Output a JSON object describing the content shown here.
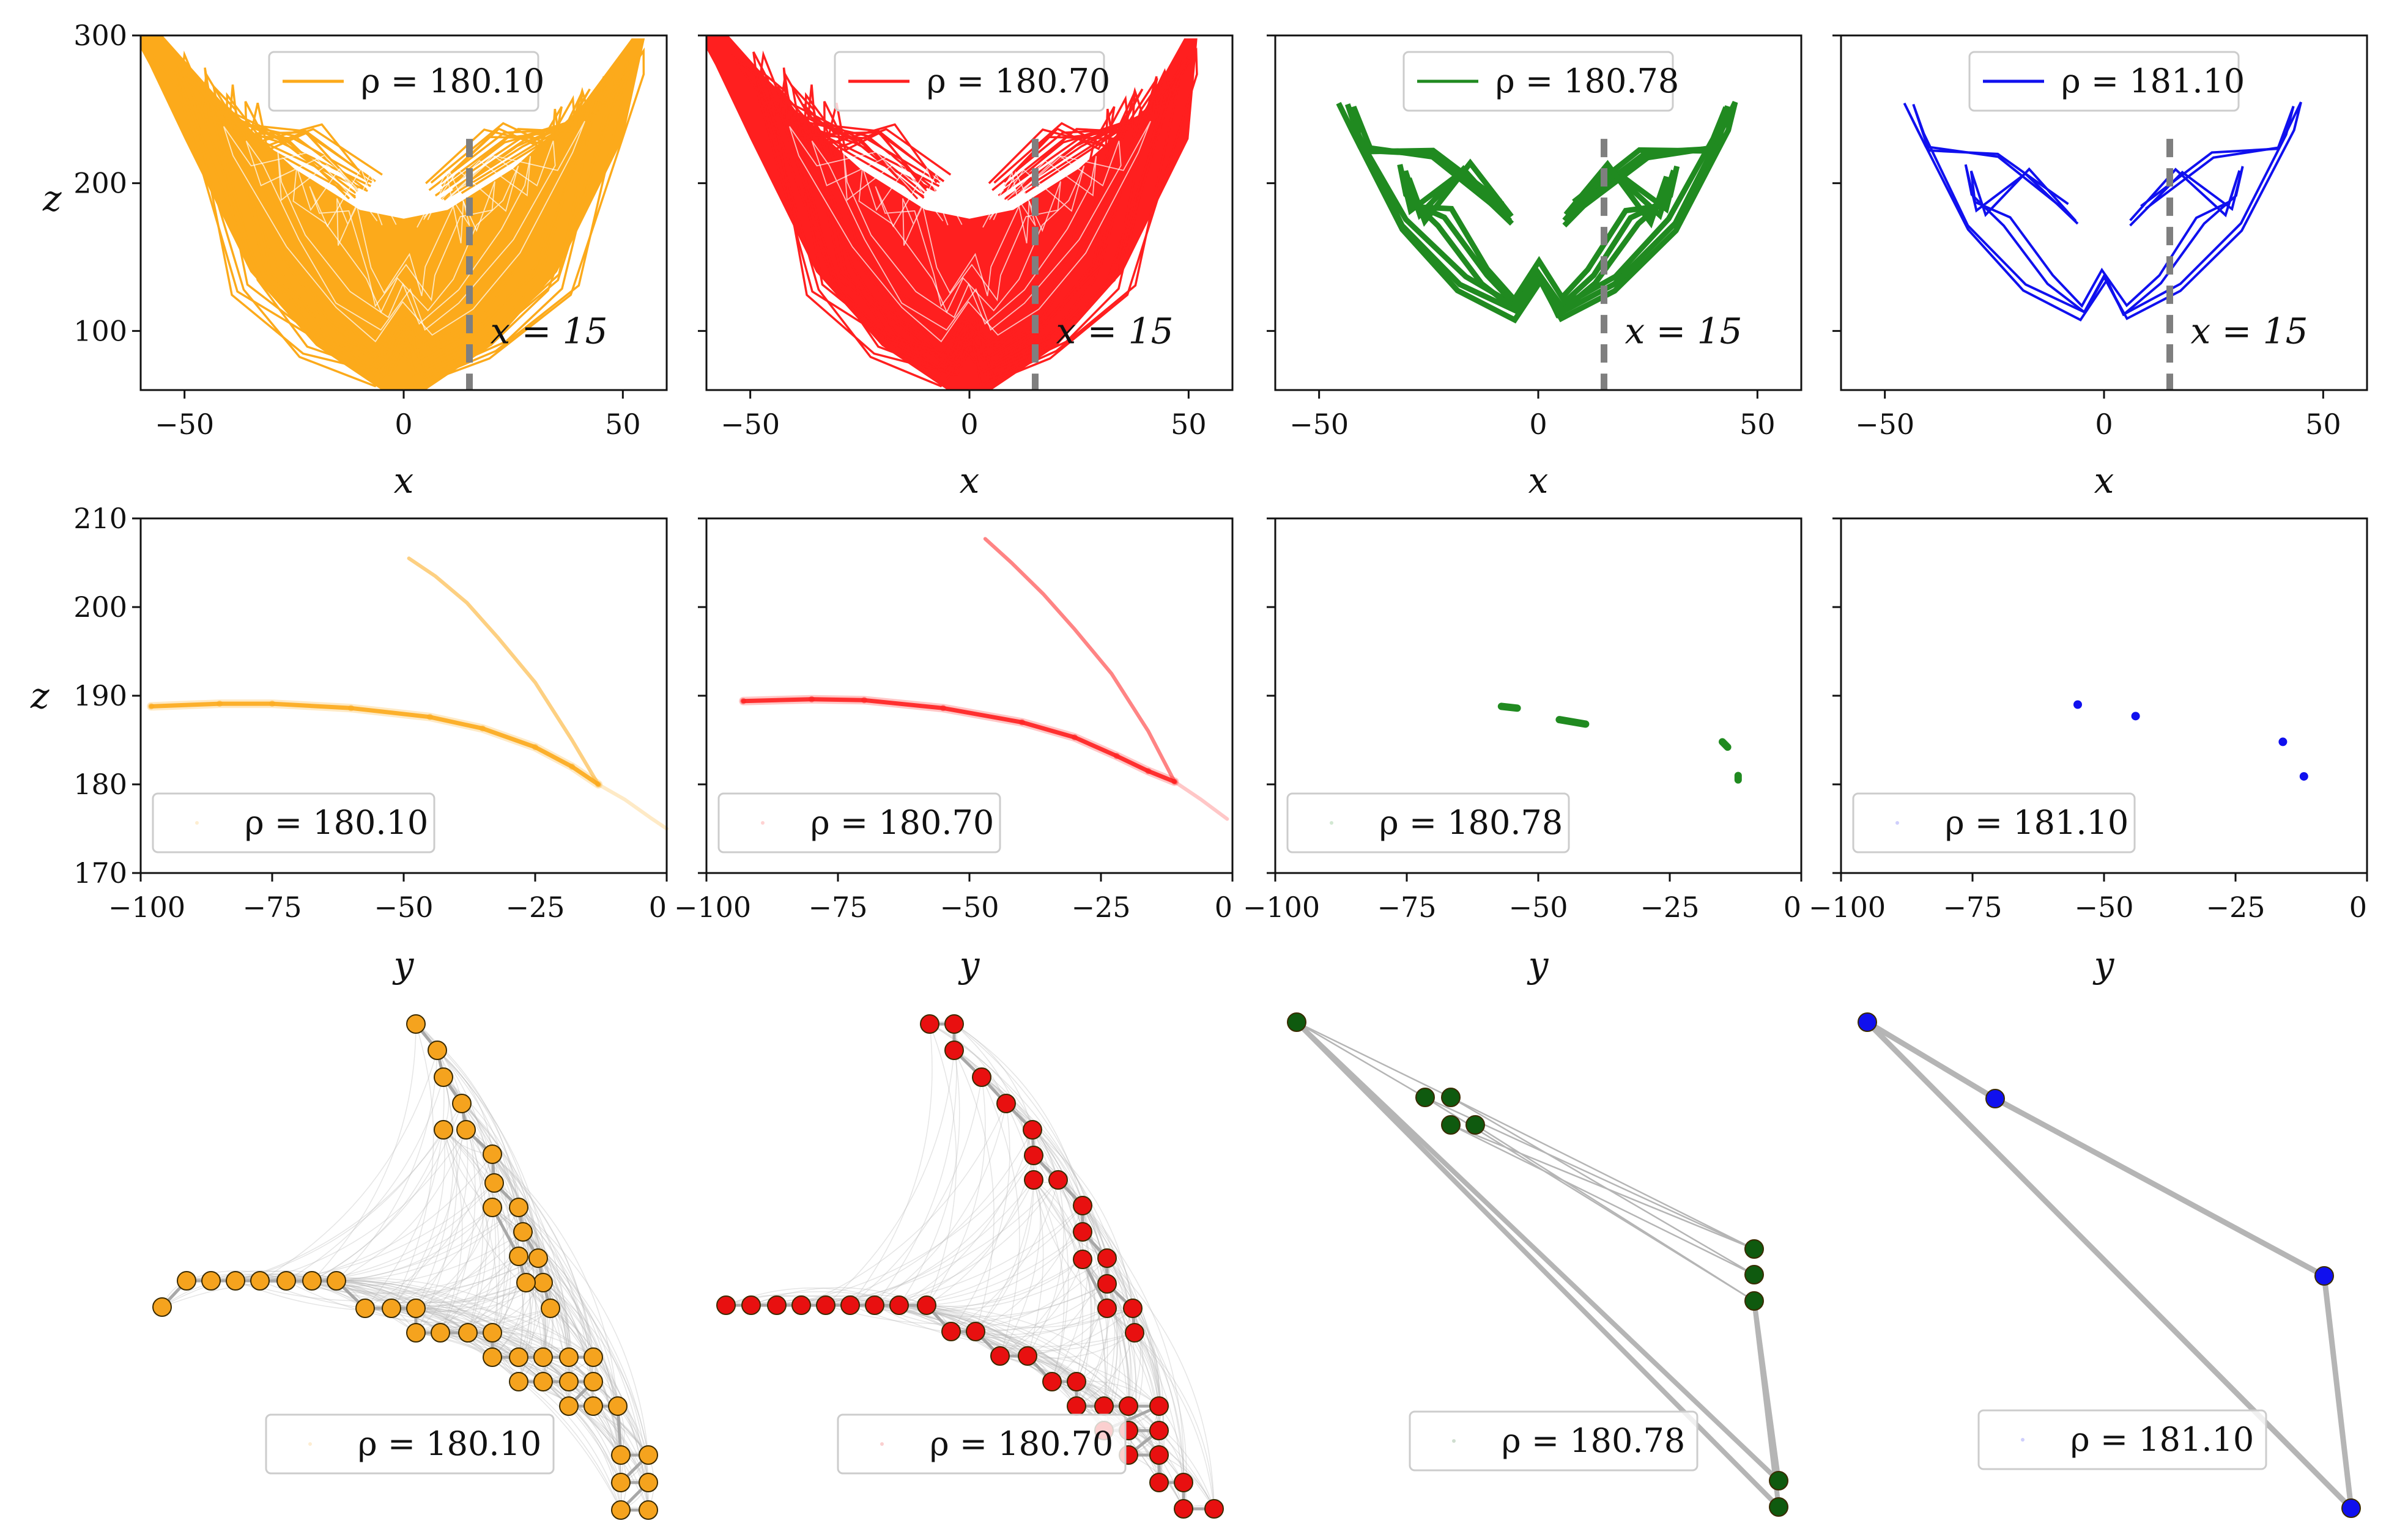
{
  "chart_data": [
    {
      "panel": "row1-col1",
      "type": "line",
      "xlabel": "x",
      "ylabel": "z",
      "xlim": [
        -60,
        60
      ],
      "ylim": [
        60,
        300
      ],
      "xticks": [
        "−50",
        "0",
        "50"
      ],
      "yticks": [
        "100",
        "200",
        "300"
      ],
      "series": [
        {
          "name": "ρ = 180.10",
          "color": "#fcaa1b",
          "style": "chaotic"
        }
      ],
      "vline": {
        "x": 15,
        "label": "x = 15",
        "color": "#7f7f7f"
      }
    },
    {
      "panel": "row1-col2",
      "type": "line",
      "xlabel": "x",
      "ylabel": "",
      "xlim": [
        -60,
        60
      ],
      "ylim": [
        60,
        300
      ],
      "xticks": [
        "−50",
        "0",
        "50"
      ],
      "yticks": [],
      "series": [
        {
          "name": "ρ = 180.70",
          "color": "#ff1f1f",
          "style": "chaotic"
        }
      ],
      "vline": {
        "x": 15,
        "label": "x = 15",
        "color": "#7f7f7f"
      }
    },
    {
      "panel": "row1-col3",
      "type": "line",
      "xlabel": "x",
      "ylabel": "",
      "xlim": [
        -60,
        60
      ],
      "ylim": [
        60,
        300
      ],
      "xticks": [
        "−50",
        "0",
        "50"
      ],
      "yticks": [],
      "series": [
        {
          "name": "ρ = 180.78",
          "color": "#208a20",
          "style": "periodic"
        }
      ],
      "vline": {
        "x": 15,
        "label": "x = 15",
        "color": "#7f7f7f"
      }
    },
    {
      "panel": "row1-col4",
      "type": "line",
      "xlabel": "x",
      "ylabel": "",
      "xlim": [
        -60,
        60
      ],
      "ylim": [
        60,
        300
      ],
      "xticks": [
        "−50",
        "0",
        "50"
      ],
      "yticks": [],
      "series": [
        {
          "name": "ρ = 181.10",
          "color": "#1010ee",
          "style": "periodic"
        }
      ],
      "vline": {
        "x": 15,
        "label": "x = 15",
        "color": "#7f7f7f"
      }
    },
    {
      "panel": "row2-col1",
      "type": "scatter",
      "xlabel": "y",
      "ylabel": "z",
      "xlim": [
        -100,
        0
      ],
      "ylim": [
        170,
        210
      ],
      "xticks": [
        "−100",
        "−75",
        "−50",
        "−25",
        "0"
      ],
      "yticks": [
        "170",
        "180",
        "190",
        "200",
        "210"
      ],
      "series": [
        {
          "name": "ρ = 180.10",
          "color": "#fcaa1b",
          "curve": [
            [
              -98,
              188.8
            ],
            [
              -85,
              189.1
            ],
            [
              -75,
              189.1
            ],
            [
              -60,
              188.6
            ],
            [
              -45,
              187.6
            ],
            [
              -35,
              186.3
            ],
            [
              -25,
              184.2
            ],
            [
              -18,
              182
            ],
            [
              -13,
              180
            ]
          ],
          "branch": [
            [
              -13,
              180
            ],
            [
              -18,
              185
            ],
            [
              -25,
              191.5
            ],
            [
              -32,
              196.5
            ],
            [
              -38,
              200.5
            ],
            [
              -44,
              203.5
            ],
            [
              -49,
              205.5
            ]
          ],
          "tail": [
            [
              -13,
              180
            ],
            [
              -8,
              178.3
            ],
            [
              -3,
              176.2
            ],
            [
              0,
              175
            ]
          ]
        }
      ]
    },
    {
      "panel": "row2-col2",
      "type": "scatter",
      "xlabel": "y",
      "ylabel": "",
      "xlim": [
        -100,
        0
      ],
      "ylim": [
        170,
        210
      ],
      "xticks": [
        "−100",
        "−75",
        "−50",
        "−25",
        "0"
      ],
      "yticks": [],
      "series": [
        {
          "name": "ρ = 180.70",
          "color": "#ff1f1f",
          "curve": [
            [
              -93,
              189.4
            ],
            [
              -80,
              189.6
            ],
            [
              -70,
              189.5
            ],
            [
              -55,
              188.6
            ],
            [
              -40,
              187
            ],
            [
              -30,
              185.3
            ],
            [
              -22,
              183.2
            ],
            [
              -16,
              181.5
            ],
            [
              -11,
              180.3
            ]
          ],
          "branch": [
            [
              -11,
              180.3
            ],
            [
              -16,
              186
            ],
            [
              -23,
              192.5
            ],
            [
              -30,
              197.5
            ],
            [
              -36,
              201.5
            ],
            [
              -42,
              205
            ],
            [
              -47,
              207.7
            ]
          ],
          "tail": [
            [
              -11,
              180.3
            ],
            [
              -6,
              178.3
            ],
            [
              -1,
              176.1
            ]
          ]
        }
      ]
    },
    {
      "panel": "row2-col3",
      "type": "scatter",
      "xlabel": "y",
      "ylabel": "",
      "xlim": [
        -100,
        0
      ],
      "ylim": [
        170,
        210
      ],
      "xticks": [
        "−100",
        "−75",
        "−50",
        "−25",
        "0"
      ],
      "yticks": [],
      "series": [
        {
          "name": "ρ = 180.78",
          "color": "#208a20",
          "segments": [
            [
              [
                -57,
                188.8
              ],
              [
                -54,
                188.6
              ]
            ],
            [
              [
                -46,
                187.3
              ],
              [
                -41,
                186.8
              ]
            ],
            [
              [
                -15,
                184.8
              ],
              [
                -14,
                184.2
              ]
            ],
            [
              [
                -12,
                181
              ],
              [
                -12,
                180.5
              ]
            ]
          ]
        }
      ]
    },
    {
      "panel": "row2-col4",
      "type": "scatter",
      "xlabel": "y",
      "ylabel": "",
      "xlim": [
        -100,
        0
      ],
      "ylim": [
        170,
        210
      ],
      "xticks": [
        "−100",
        "−75",
        "−50",
        "−25",
        "0"
      ],
      "yticks": [],
      "series": [
        {
          "name": "ρ = 181.10",
          "color": "#1010ee",
          "points": [
            [
              -55,
              189
            ],
            [
              -44,
              187.7
            ],
            [
              -16,
              184.8
            ],
            [
              -12,
              180.9
            ]
          ]
        }
      ]
    },
    {
      "panel": "row3-col1",
      "type": "network",
      "series": [
        {
          "name": "ρ = 180.10",
          "color": "#f5a31e"
        }
      ]
    },
    {
      "panel": "row3-col2",
      "type": "network",
      "series": [
        {
          "name": "ρ = 180.70",
          "color": "#e81010"
        }
      ]
    },
    {
      "panel": "row3-col3",
      "type": "network",
      "series": [
        {
          "name": "ρ = 180.78",
          "color": "#0f5a0f"
        }
      ]
    },
    {
      "panel": "row3-col4",
      "type": "network",
      "series": [
        {
          "name": "ρ = 181.10",
          "color": "#1010ee"
        }
      ]
    }
  ]
}
